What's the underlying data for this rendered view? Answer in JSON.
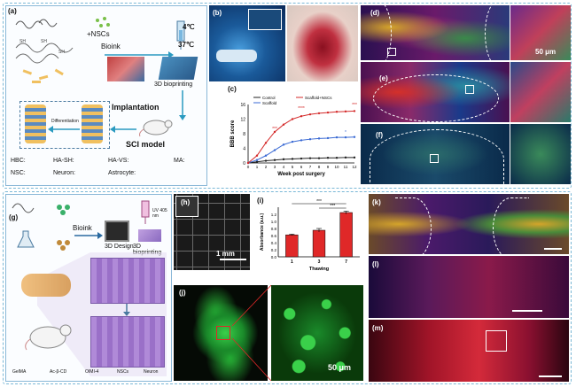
{
  "figure": {
    "top_panel": {
      "a": {
        "label": "(a)",
        "nscs_label": "+NSCs",
        "bioink_label": "Bioink",
        "temp_cold": "4℃",
        "temp_warm": "37℃",
        "printing_label": "3D bioprinting",
        "implantation_label": "Implantation",
        "model_label": "SCI model",
        "differentiation_label": "Differentiation",
        "legend": {
          "hbc": "HBC:",
          "hash": "HA-SH:",
          "havs": "HA-VS:",
          "ma": "MA:",
          "nsc": "NSC:",
          "neuron": "Neuron:",
          "astrocyte": "Astrocyte:"
        }
      },
      "b": {
        "label": "(b)"
      },
      "c": {
        "label": "(c)"
      },
      "d": {
        "label": "(d)",
        "scale": "50 μm"
      },
      "e": {
        "label": "(e)"
      },
      "f": {
        "label": "(f)"
      }
    },
    "bottom_panel": {
      "g": {
        "label": "(g)",
        "bioink_label": "Bioink",
        "design_label": "3D Design",
        "printing_label": "3D bioprinting",
        "uv_label": "UV 405 nm",
        "legend": {
          "gelma": "GelMA",
          "cd": "Ac-β-CD",
          "oimi": "OIMI-4",
          "nscs": "NSCs",
          "neuron": "Neuron"
        }
      },
      "h": {
        "label": "(h)",
        "scale": "1 mm"
      },
      "i": {
        "label": "(i)"
      },
      "j": {
        "label": "(j)",
        "scale": "50 μm"
      },
      "k": {
        "label": "(k)"
      },
      "l": {
        "label": "(l)"
      },
      "m": {
        "label": "(m)"
      }
    }
  },
  "chart_data": [
    {
      "type": "line",
      "panel": "c",
      "xlabel": "Week post surgery",
      "ylabel": "BBB score",
      "x": [
        0,
        1,
        2,
        3,
        4,
        5,
        6,
        7,
        8,
        9,
        10,
        11,
        12
      ],
      "series": [
        {
          "name": "Control",
          "color": "#222222",
          "values": [
            0,
            0.3,
            0.6,
            0.8,
            1.0,
            1.1,
            1.2,
            1.3,
            1.3,
            1.4,
            1.4,
            1.5,
            1.5
          ]
        },
        {
          "name": "Scaffold",
          "color": "#3a6ad4",
          "values": [
            0,
            0.8,
            2.0,
            3.5,
            5.0,
            5.8,
            6.2,
            6.5,
            6.7,
            6.8,
            7.0,
            7.0,
            7.1
          ]
        },
        {
          "name": "Scaffold+NSCs",
          "color": "#d42a2a",
          "values": [
            0,
            2.0,
            5.5,
            8.5,
            10.5,
            12.0,
            12.8,
            13.3,
            13.6,
            13.8,
            14.0,
            14.1,
            14.2
          ]
        }
      ],
      "ylim": [
        0,
        16
      ],
      "annotations": [
        "***",
        "****",
        "*"
      ]
    },
    {
      "type": "bar",
      "panel": "i",
      "xlabel": "Thawing",
      "ylabel": "Absorbance (a.u.)",
      "categories": [
        "1",
        "3",
        "7"
      ],
      "values": [
        0.62,
        0.75,
        1.25
      ],
      "errors": [
        0.02,
        0.05,
        0.04
      ],
      "ylim": [
        0,
        1.4
      ],
      "yticks": [
        "0.0",
        "0.2",
        "0.4",
        "0.6",
        "0.8",
        "1.0",
        "1.2"
      ],
      "annotations": [
        "***",
        "***"
      ],
      "color": "#e02828"
    }
  ]
}
